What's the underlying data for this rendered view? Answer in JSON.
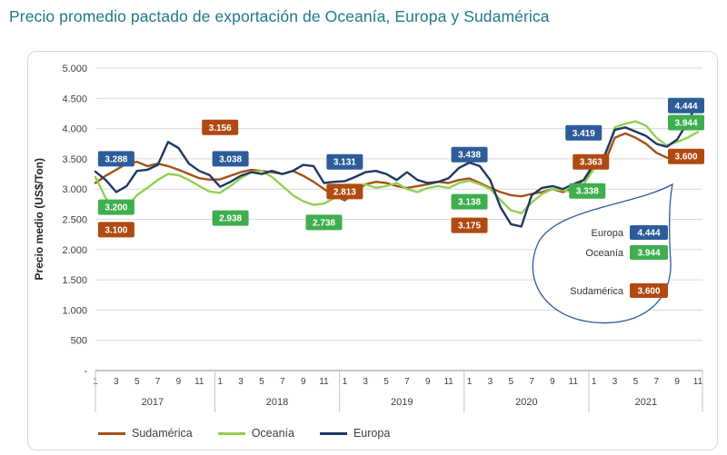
{
  "title": "Precio promedio pactado de exportación de Oceanía, Europa y Sudamérica",
  "chart_data": {
    "type": "line",
    "y_axis": {
      "label": "Precio medio (US$/Ton)",
      "ticks": [
        "5.000",
        "4.500",
        "4.000",
        "3.500",
        "3.000",
        "2.500",
        "2.000",
        "1.500",
        "1.000",
        "500",
        "-"
      ],
      "min": 0,
      "max": 5000,
      "step": 500
    },
    "x_axis": {
      "years": [
        "2017",
        "2018",
        "2019",
        "2020",
        "2021"
      ],
      "month_ticks": [
        1,
        3,
        5,
        7,
        9,
        11
      ],
      "months_per_year": [
        12,
        12,
        12,
        12,
        11
      ]
    },
    "series": [
      {
        "id": "sudamerica",
        "name": "Sudamérica",
        "color": "#A35219",
        "label_color": "#B04A11",
        "values": [
          3100,
          3220,
          3320,
          3420,
          3450,
          3380,
          3420,
          3380,
          3320,
          3250,
          3180,
          3156,
          3160,
          3220,
          3280,
          3320,
          3300,
          3280,
          3250,
          3300,
          3220,
          3120,
          3000,
          2900,
          2813,
          2950,
          3080,
          3120,
          3100,
          3050,
          3020,
          3050,
          3080,
          3120,
          3100,
          3150,
          3175,
          3100,
          3020,
          2950,
          2900,
          2880,
          2920,
          2950,
          3000,
          2950,
          3020,
          3150,
          3363,
          3420,
          3850,
          3920,
          3850,
          3750,
          3600,
          3520,
          3480,
          3520,
          3600
        ]
      },
      {
        "id": "oceania",
        "name": "Oceanía",
        "color": "#92D050",
        "label_color": "#3FAE4E",
        "values": [
          3200,
          2850,
          2620,
          2700,
          2900,
          3020,
          3150,
          3250,
          3230,
          3150,
          3050,
          2960,
          2938,
          3050,
          3180,
          3280,
          3300,
          3200,
          3050,
          2900,
          2800,
          2738,
          2760,
          2850,
          3000,
          3050,
          3080,
          3020,
          3050,
          3100,
          3000,
          2950,
          3020,
          3050,
          3020,
          3100,
          3138,
          3080,
          3000,
          2820,
          2650,
          2600,
          2780,
          2920,
          3000,
          2980,
          2950,
          3080,
          3338,
          3500,
          4020,
          4080,
          4120,
          4050,
          3850,
          3720,
          3780,
          3850,
          3944
        ]
      },
      {
        "id": "europa",
        "name": "Europa",
        "color": "#203864",
        "label_color": "#2E5C9A",
        "values": [
          3288,
          3150,
          2950,
          3050,
          3300,
          3320,
          3400,
          3780,
          3680,
          3420,
          3300,
          3230,
          3038,
          3120,
          3220,
          3280,
          3250,
          3300,
          3250,
          3300,
          3400,
          3380,
          3100,
          3120,
          3131,
          3200,
          3280,
          3300,
          3250,
          3150,
          3280,
          3150,
          3100,
          3120,
          3180,
          3350,
          3438,
          3380,
          3150,
          2700,
          2420,
          2380,
          2900,
          3020,
          3050,
          3000,
          3080,
          3150,
          3419,
          3550,
          3980,
          4020,
          3950,
          3880,
          3750,
          3700,
          3820,
          4100,
          4444
        ]
      }
    ],
    "callouts": [
      {
        "text": "3.288",
        "series": "europa",
        "xi": 2,
        "y": 3500
      },
      {
        "text": "3.200",
        "series": "oceania",
        "xi": 2,
        "y": 2700
      },
      {
        "text": "3.100",
        "series": "sudamerica",
        "xi": 2,
        "y": 2330
      },
      {
        "text": "3.156",
        "series": "sudamerica",
        "xi": 12,
        "y": 4020
      },
      {
        "text": "3.038",
        "series": "europa",
        "xi": 13,
        "y": 3500
      },
      {
        "text": "2.938",
        "series": "oceania",
        "xi": 13,
        "y": 2520
      },
      {
        "text": "2.738",
        "series": "oceania",
        "xi": 22,
        "y": 2450
      },
      {
        "text": "3.131",
        "series": "europa",
        "xi": 24,
        "y": 3450
      },
      {
        "text": "2.813",
        "series": "sudamerica",
        "xi": 24,
        "y": 2960
      },
      {
        "text": "3.438",
        "series": "europa",
        "xi": 36,
        "y": 3570
      },
      {
        "text": "3.138",
        "series": "oceania",
        "xi": 36,
        "y": 2790
      },
      {
        "text": "3.175",
        "series": "sudamerica",
        "xi": 36,
        "y": 2400
      },
      {
        "text": "3.419",
        "series": "europa",
        "xi": 47,
        "y": 3930
      },
      {
        "text": "3.363",
        "series": "sudamerica",
        "xi": 47,
        "y": 3450,
        "dx": 8
      },
      {
        "text": "3.338",
        "series": "oceania",
        "xi": 47,
        "y": 2970,
        "dx": 4
      },
      {
        "text": "4.444",
        "series": "europa",
        "xi": 58,
        "y": 4380,
        "dx": -13
      },
      {
        "text": "3.944",
        "series": "oceania",
        "xi": 58,
        "y": 4100,
        "dx": -13
      },
      {
        "text": "3.600",
        "series": "sudamerica",
        "xi": 58,
        "y": 3540,
        "dx": -13
      }
    ],
    "balloon": {
      "items": [
        {
          "label": "Europa",
          "value": "4.444",
          "series": "europa"
        },
        {
          "label": "Oceanía",
          "value": "3.944",
          "series": "oceania"
        },
        {
          "label": "Sudamérica",
          "value": "3.600",
          "series": "sudamerica"
        }
      ]
    }
  }
}
